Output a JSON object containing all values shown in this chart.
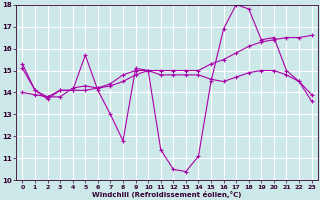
{
  "xlabel": "Windchill (Refroidissement éolien,°C)",
  "background_color": "#cde8e8",
  "grid_color": "#ffffff",
  "line_color": "#aa00aa",
  "xlim": [
    -0.5,
    23.5
  ],
  "ylim": [
    10,
    18
  ],
  "yticks": [
    10,
    11,
    12,
    13,
    14,
    15,
    16,
    17,
    18
  ],
  "xticks": [
    0,
    1,
    2,
    3,
    4,
    5,
    6,
    7,
    8,
    9,
    10,
    11,
    12,
    13,
    14,
    15,
    16,
    17,
    18,
    19,
    20,
    21,
    22,
    23
  ],
  "series": [
    {
      "x": [
        0,
        1,
        2,
        3,
        4,
        5,
        6,
        7,
        8,
        9,
        10,
        11,
        12,
        13,
        14,
        15,
        16,
        17,
        18,
        19,
        20,
        21,
        22,
        23
      ],
      "y": [
        15.3,
        14.1,
        13.7,
        14.1,
        14.1,
        15.7,
        14.1,
        13.0,
        11.8,
        15.1,
        15.0,
        11.4,
        10.5,
        10.4,
        11.1,
        14.5,
        16.9,
        18.0,
        17.8,
        16.4,
        16.5,
        15.0,
        14.5,
        13.6
      ]
    },
    {
      "x": [
        0,
        1,
        2,
        3,
        4,
        5,
        6,
        7,
        8,
        9,
        10,
        11,
        12,
        13,
        14,
        15,
        16,
        17,
        18,
        19,
        20,
        21,
        22,
        23
      ],
      "y": [
        14.0,
        13.9,
        13.8,
        13.8,
        14.2,
        14.3,
        14.2,
        14.3,
        14.5,
        14.8,
        15.0,
        15.0,
        15.0,
        15.0,
        15.0,
        15.3,
        15.5,
        15.8,
        16.1,
        16.3,
        16.4,
        16.5,
        16.5,
        16.6
      ]
    },
    {
      "x": [
        0,
        1,
        2,
        3,
        4,
        5,
        6,
        7,
        8,
        9,
        10,
        11,
        12,
        13,
        14,
        15,
        16,
        17,
        18,
        19,
        20,
        21,
        22,
        23
      ],
      "y": [
        15.1,
        14.1,
        13.8,
        14.1,
        14.1,
        14.1,
        14.2,
        14.4,
        14.8,
        15.0,
        15.0,
        14.8,
        14.8,
        14.8,
        14.8,
        14.6,
        14.5,
        14.7,
        14.9,
        15.0,
        15.0,
        14.8,
        14.5,
        13.9
      ]
    }
  ]
}
